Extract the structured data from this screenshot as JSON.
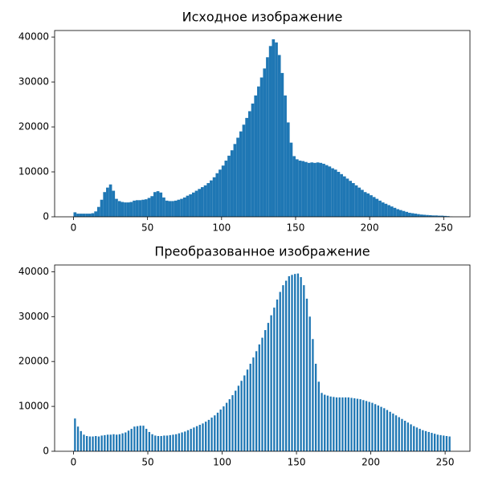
{
  "chart_data": [
    {
      "type": "histogram",
      "title": "Исходное изображение",
      "color": "#1f77b4",
      "bins": [
        0,
        2,
        4,
        6,
        8,
        10,
        12,
        14,
        16,
        18,
        20,
        22,
        24,
        26,
        28,
        30,
        32,
        34,
        36,
        38,
        40,
        42,
        44,
        46,
        48,
        50,
        52,
        54,
        56,
        58,
        60,
        62,
        64,
        66,
        68,
        70,
        72,
        74,
        76,
        78,
        80,
        82,
        84,
        86,
        88,
        90,
        92,
        94,
        96,
        98,
        100,
        102,
        104,
        106,
        108,
        110,
        112,
        114,
        116,
        118,
        120,
        122,
        124,
        126,
        128,
        130,
        132,
        134,
        136,
        138,
        140,
        142,
        144,
        146,
        148,
        150,
        152,
        154,
        156,
        158,
        160,
        162,
        164,
        166,
        168,
        170,
        172,
        174,
        176,
        178,
        180,
        182,
        184,
        186,
        188,
        190,
        192,
        194,
        196,
        198,
        200,
        202,
        204,
        206,
        208,
        210,
        212,
        214,
        216,
        218,
        220,
        222,
        224,
        226,
        228,
        230,
        232,
        234,
        236,
        238,
        240,
        242,
        244,
        246,
        248,
        250,
        252,
        254,
        256
      ],
      "values": [
        1000,
        700,
        700,
        700,
        700,
        700,
        800,
        1200,
        2200,
        3800,
        5500,
        6500,
        7200,
        5800,
        4000,
        3500,
        3300,
        3200,
        3200,
        3300,
        3600,
        3700,
        3700,
        3800,
        3900,
        4200,
        4600,
        5500,
        5700,
        5400,
        4300,
        3600,
        3500,
        3500,
        3600,
        3800,
        4000,
        4300,
        4700,
        5000,
        5400,
        5800,
        6200,
        6600,
        7000,
        7500,
        8100,
        8800,
        9700,
        10500,
        11400,
        12500,
        13600,
        14800,
        16200,
        17600,
        19000,
        20500,
        22000,
        23500,
        25200,
        27000,
        29000,
        31000,
        33000,
        35500,
        38000,
        39500,
        38800,
        36000,
        32000,
        27000,
        21000,
        16500,
        13500,
        12800,
        12500,
        12400,
        12200,
        12000,
        12100,
        12000,
        12100,
        12000,
        11800,
        11500,
        11200,
        10800,
        10500,
        10000,
        9500,
        9000,
        8500,
        8000,
        7500,
        7000,
        6500,
        6000,
        5500,
        5200,
        4800,
        4400,
        4000,
        3600,
        3200,
        2900,
        2600,
        2300,
        2000,
        1700,
        1500,
        1300,
        1100,
        900,
        800,
        700,
        600,
        500,
        450,
        400,
        350,
        300,
        300,
        250,
        250,
        200,
        150,
        50
      ],
      "xlim": [
        -12.75,
        267.75
      ],
      "xticks": [
        0,
        50,
        100,
        150,
        200,
        250
      ],
      "ylim": [
        0,
        41450
      ],
      "yticks": [
        0,
        10000,
        20000,
        30000,
        40000
      ]
    },
    {
      "type": "bar",
      "title": "Преобразованное изображение",
      "color": "#1f77b4",
      "x": [
        1,
        3,
        5,
        7,
        9,
        11,
        13,
        15,
        17,
        19,
        21,
        23,
        25,
        27,
        29,
        31,
        33,
        35,
        37,
        39,
        41,
        43,
        45,
        47,
        49,
        51,
        53,
        55,
        57,
        59,
        61,
        63,
        65,
        67,
        69,
        71,
        73,
        75,
        77,
        79,
        81,
        83,
        85,
        87,
        89,
        91,
        93,
        95,
        97,
        99,
        101,
        103,
        105,
        107,
        109,
        111,
        113,
        115,
        117,
        119,
        121,
        123,
        125,
        127,
        129,
        131,
        133,
        135,
        137,
        139,
        141,
        143,
        145,
        147,
        149,
        151,
        153,
        155,
        157,
        159,
        161,
        163,
        165,
        167,
        169,
        171,
        173,
        175,
        177,
        179,
        181,
        183,
        185,
        187,
        189,
        191,
        193,
        195,
        197,
        199,
        201,
        203,
        205,
        207,
        209,
        211,
        213,
        215,
        217,
        219,
        221,
        223,
        225,
        227,
        229,
        231,
        233,
        235,
        237,
        239,
        241,
        243,
        245,
        247,
        249,
        251,
        253
      ],
      "values": [
        7300,
        5500,
        4500,
        3700,
        3400,
        3300,
        3300,
        3400,
        3300,
        3500,
        3600,
        3700,
        3700,
        3800,
        3700,
        3800,
        4000,
        4200,
        4600,
        5000,
        5500,
        5600,
        5700,
        5700,
        5000,
        4300,
        3800,
        3500,
        3400,
        3400,
        3500,
        3500,
        3600,
        3700,
        3800,
        4000,
        4200,
        4400,
        4700,
        5000,
        5300,
        5600,
        5900,
        6200,
        6600,
        7000,
        7500,
        8000,
        8600,
        9300,
        10000,
        10800,
        11600,
        12500,
        13500,
        14600,
        15700,
        16900,
        18200,
        19500,
        20900,
        22300,
        23800,
        25300,
        27000,
        28600,
        30300,
        32000,
        33800,
        35500,
        37000,
        38000,
        39000,
        39300,
        39500,
        39600,
        38800,
        37000,
        34000,
        30000,
        25000,
        19500,
        15500,
        13000,
        12600,
        12400,
        12200,
        12100,
        12000,
        12000,
        12000,
        12000,
        12000,
        11900,
        11800,
        11700,
        11600,
        11400,
        11200,
        11000,
        10800,
        10500,
        10200,
        9900,
        9600,
        9200,
        8800,
        8400,
        8000,
        7600,
        7200,
        6800,
        6400,
        6000,
        5600,
        5300,
        5000,
        4700,
        4500,
        4300,
        4100,
        3900,
        3700,
        3600,
        3500,
        3400,
        3300
      ],
      "xlim": [
        -12.7,
        266.7
      ],
      "xticks": [
        0,
        50,
        100,
        150,
        200,
        250
      ],
      "ylim": [
        0,
        41500
      ],
      "yticks": [
        0,
        10000,
        20000,
        30000,
        40000
      ]
    }
  ]
}
